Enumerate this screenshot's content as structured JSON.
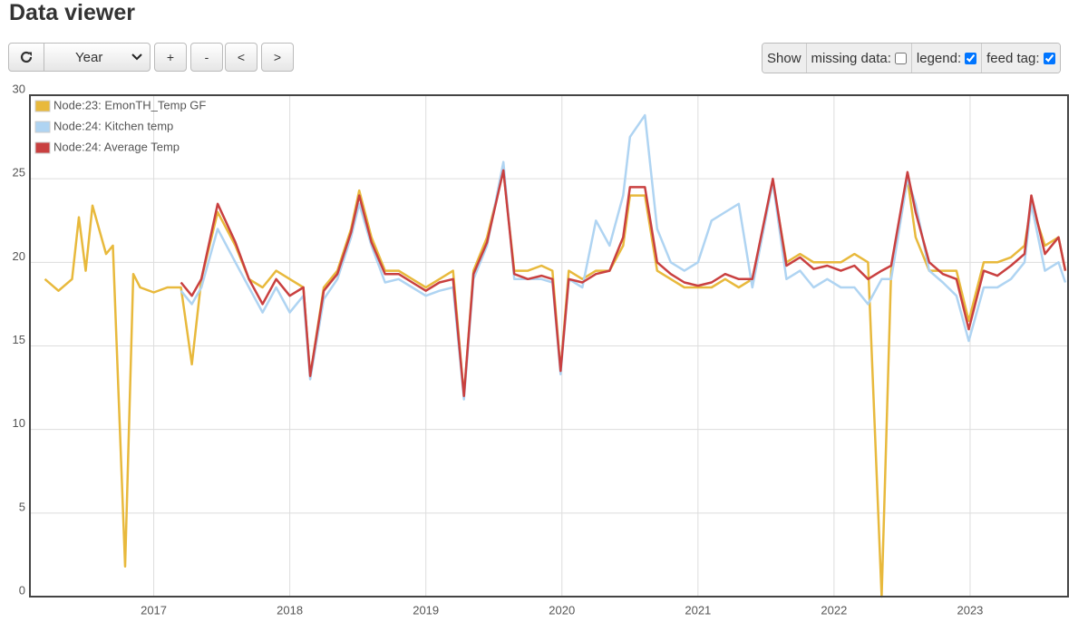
{
  "header": {
    "title": "Data viewer"
  },
  "toolbar": {
    "period": "Year",
    "buttons": [
      "+",
      "-",
      "<",
      ">"
    ],
    "show": "Show",
    "options": [
      {
        "label": "missing data:",
        "checked": false
      },
      {
        "label": "legend:",
        "checked": true
      },
      {
        "label": "feed tag:",
        "checked": true
      }
    ]
  },
  "chart_data": {
    "type": "line",
    "legend": "upper left",
    "grid": true,
    "xlim": [
      2016.09,
      2023.72
    ],
    "xticks": [
      2017,
      2018,
      2019,
      2020,
      2021,
      2022,
      2023
    ],
    "ylim": [
      0,
      30
    ],
    "yticks": [
      0,
      5,
      10,
      15,
      20,
      25,
      30
    ],
    "x": [
      2016.2,
      2016.3,
      2016.4,
      2016.45,
      2016.5,
      2016.55,
      2016.65,
      2016.7,
      2016.79,
      2016.85,
      2016.9,
      2017.0,
      2017.1,
      2017.2,
      2017.28,
      2017.35,
      2017.47,
      2017.6,
      2017.7,
      2017.8,
      2017.9,
      2018.0,
      2018.1,
      2018.15,
      2018.25,
      2018.35,
      2018.45,
      2018.51,
      2018.6,
      2018.7,
      2018.8,
      2018.9,
      2019.0,
      2019.1,
      2019.2,
      2019.28,
      2019.35,
      2019.45,
      2019.57,
      2019.65,
      2019.75,
      2019.85,
      2019.93,
      2019.99,
      2020.05,
      2020.15,
      2020.25,
      2020.35,
      2020.45,
      2020.5,
      2020.61,
      2020.7,
      2020.8,
      2020.9,
      2021.0,
      2021.1,
      2021.2,
      2021.3,
      2021.4,
      2021.55,
      2021.65,
      2021.75,
      2021.85,
      2021.95,
      2022.05,
      2022.15,
      2022.25,
      2022.35,
      2022.42,
      2022.54,
      2022.6,
      2022.7,
      2022.8,
      2022.9,
      2022.99,
      2023.1,
      2023.2,
      2023.3,
      2023.4,
      2023.45,
      2023.55,
      2023.65,
      2023.7
    ],
    "series": [
      {
        "name": "Node:23: EmonTH_Temp GF",
        "color": "#e8b93c",
        "values": [
          19,
          18.3,
          19,
          22.7,
          19.5,
          23.4,
          20.5,
          21,
          1.8,
          19.3,
          18.5,
          18.2,
          18.5,
          18.5,
          13.9,
          19,
          23,
          21,
          19,
          18.5,
          19.5,
          19,
          18.5,
          13.2,
          18.5,
          19.5,
          22,
          24.3,
          21.5,
          19.5,
          19.5,
          19,
          18.5,
          19,
          19.5,
          12,
          19.5,
          21.5,
          25.5,
          19.5,
          19.5,
          19.8,
          19.5,
          13.5,
          19.5,
          19,
          19.5,
          19.5,
          21,
          24,
          24,
          19.5,
          19,
          18.5,
          18.5,
          18.5,
          19,
          18.5,
          19,
          24.8,
          20,
          20.5,
          20,
          20,
          20,
          20.5,
          20,
          0,
          19.5,
          25,
          21.5,
          19.5,
          19.5,
          19.5,
          16.5,
          20,
          20,
          20.3,
          21,
          23.5,
          21,
          21.5,
          19.5
        ]
      },
      {
        "name": "Node:24: Kitchen temp",
        "color": "#afd4f2",
        "values": [
          null,
          null,
          null,
          null,
          null,
          null,
          null,
          null,
          null,
          null,
          null,
          null,
          null,
          18.3,
          17.5,
          18.5,
          22,
          20,
          18.5,
          17,
          18.5,
          17,
          18,
          13,
          17.8,
          19,
          21.5,
          23.5,
          21,
          18.8,
          19,
          18.5,
          18,
          18.3,
          18.5,
          11.8,
          19,
          21,
          26,
          19,
          19,
          19,
          18.8,
          13.3,
          19,
          18.5,
          22.5,
          21,
          24,
          27.5,
          28.8,
          22,
          20,
          19.5,
          20,
          22.5,
          23,
          23.5,
          18.5,
          24.8,
          19,
          19.5,
          18.5,
          19,
          18.5,
          18.5,
          17.5,
          19,
          19,
          25,
          23.5,
          19.5,
          18.8,
          18,
          15.3,
          18.5,
          18.5,
          19,
          20,
          23.5,
          19.5,
          20,
          18.8
        ]
      },
      {
        "name": "Node:24: Average Temp",
        "color": "#c94040",
        "values": [
          null,
          null,
          null,
          null,
          null,
          null,
          null,
          null,
          null,
          null,
          null,
          null,
          null,
          18.8,
          18,
          19,
          23.5,
          21.2,
          19,
          17.5,
          19,
          18,
          18.5,
          13.2,
          18.3,
          19.3,
          21.8,
          24,
          21.2,
          19.3,
          19.3,
          18.8,
          18.3,
          18.8,
          19,
          12,
          19.3,
          21.2,
          25.5,
          19.3,
          19,
          19.2,
          19,
          13.5,
          19,
          18.8,
          19.3,
          19.5,
          21.5,
          24.5,
          24.5,
          20,
          19.3,
          18.8,
          18.6,
          18.8,
          19.3,
          19,
          19,
          25,
          19.8,
          20.3,
          19.6,
          19.8,
          19.5,
          19.8,
          19,
          19.5,
          19.8,
          25.4,
          23,
          20,
          19.3,
          19,
          16,
          19.5,
          19.2,
          19.8,
          20.5,
          24,
          20.5,
          21.5,
          19.5
        ]
      }
    ]
  }
}
